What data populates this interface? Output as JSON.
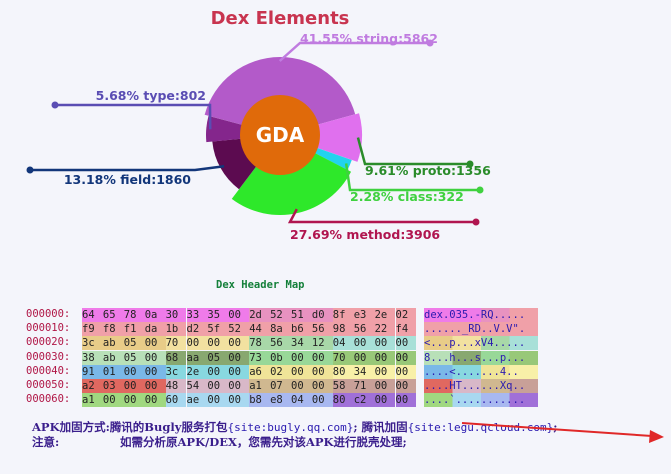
{
  "chart_data": {
    "type": "pie",
    "title": "Dex Elements",
    "center_label": "GDA",
    "slices": [
      {
        "label": "41.55% string:5862",
        "name": "string",
        "percent": 41.55,
        "value": 5862,
        "color": "#b35ac9"
      },
      {
        "label": "9.61% proto:1356",
        "name": "proto",
        "percent": 9.61,
        "value": 1356,
        "color": "#e070ee"
      },
      {
        "label": "2.28% class:322",
        "name": "class",
        "percent": 2.28,
        "value": 322,
        "color": "#22d3ee"
      },
      {
        "label": "27.69% method:3906",
        "name": "method",
        "percent": 27.69,
        "value": 3906,
        "color": "#2ee82a"
      },
      {
        "label": "13.18% field:1860",
        "name": "field",
        "percent": 13.18,
        "value": 1860,
        "color": "#5c0b50"
      },
      {
        "label": "5.68% type:802",
        "name": "type",
        "percent": 5.68,
        "value": 802,
        "color": "#84268c"
      }
    ],
    "label_colors": {
      "string": "#c07ce0",
      "proto": "#2a8c2a",
      "class": "#3fd13f",
      "method": "#b0154f",
      "field": "#12367a",
      "type": "#5a4db3"
    },
    "legend": "none"
  },
  "header_map": {
    "title": "Dex Header Map",
    "rows": [
      {
        "offset": "000000:",
        "bytes": [
          "64",
          "65",
          "78",
          "0a",
          "30",
          "33",
          "35",
          "00",
          "2d",
          "52",
          "51",
          "d0",
          "8f",
          "e3",
          "2e",
          "02"
        ],
        "ascii": "dex.035.-RQ....."
      },
      {
        "offset": "000010:",
        "bytes": [
          "f9",
          "f8",
          "f1",
          "da",
          "1b",
          "d2",
          "5f",
          "52",
          "44",
          "8a",
          "b6",
          "56",
          "98",
          "56",
          "22",
          "f4"
        ],
        "ascii": "......_RD..V.V\"."
      },
      {
        "offset": "000020:",
        "bytes": [
          "3c",
          "ab",
          "05",
          "00",
          "70",
          "00",
          "00",
          "00",
          "78",
          "56",
          "34",
          "12",
          "04",
          "00",
          "00",
          "00"
        ],
        "ascii": "<...p...xV4....."
      },
      {
        "offset": "000030:",
        "bytes": [
          "38",
          "ab",
          "05",
          "00",
          "68",
          "aa",
          "05",
          "00",
          "73",
          "0b",
          "00",
          "00",
          "70",
          "00",
          "00",
          "00"
        ],
        "ascii": "8...h...s...p..."
      },
      {
        "offset": "000040:",
        "bytes": [
          "91",
          "01",
          "00",
          "00",
          "3c",
          "2e",
          "00",
          "00",
          "a6",
          "02",
          "00",
          "00",
          "80",
          "34",
          "00",
          "00"
        ],
        "ascii": "....<.......4.."
      },
      {
        "offset": "000050:",
        "bytes": [
          "a2",
          "03",
          "00",
          "00",
          "48",
          "54",
          "00",
          "00",
          "a1",
          "07",
          "00",
          "00",
          "58",
          "71",
          "00",
          "00"
        ],
        "ascii": "....HT......Xq.."
      },
      {
        "offset": "000060:",
        "bytes": [
          "a1",
          "00",
          "00",
          "00",
          "60",
          "ae",
          "00",
          "00",
          "b8",
          "e8",
          "04",
          "00",
          "80",
          "c2",
          "00",
          "00"
        ],
        "ascii": "....`..........."
      }
    ],
    "cell_colors": [
      [
        "#ef7be9",
        "#ef7be9",
        "#ef7be9",
        "#ef7be9",
        "#ef7be9",
        "#ef7be9",
        "#ef7be9",
        "#ef7be9",
        "#e892c0",
        "#e892c0",
        "#e892c0",
        "#e892c0",
        "#f0a0a8",
        "#f0a0a8",
        "#f0a0a8",
        "#f0a0a8"
      ],
      [
        "#f0a0a8",
        "#f0a0a8",
        "#f0a0a8",
        "#f0a0a8",
        "#f0a0a8",
        "#f0a0a8",
        "#f0a0a8",
        "#f0a0a8",
        "#f0a0a8",
        "#f0a0a8",
        "#f0a0a8",
        "#f0a0a8",
        "#f0a0a8",
        "#f0a0a8",
        "#f0a0a8",
        "#f0a0a8"
      ],
      [
        "#e8cc88",
        "#e8cc88",
        "#e8cc88",
        "#e8cc88",
        "#f2e1a0",
        "#f2e1a0",
        "#f2e1a0",
        "#f2e1a0",
        "#a8d8a8",
        "#a8d8a8",
        "#a8d8a8",
        "#a8d8a8",
        "#a8e0d8",
        "#a8e0d8",
        "#a8e0d8",
        "#a8e0d8"
      ],
      [
        "#b8e0b8",
        "#b8e0b8",
        "#b8e0b8",
        "#b8e0b8",
        "#88a870",
        "#88a870",
        "#88a870",
        "#88a870",
        "#98d898",
        "#98d898",
        "#98d898",
        "#98d898",
        "#98c878",
        "#98c878",
        "#98c878",
        "#98c878"
      ],
      [
        "#7ab8e8",
        "#7ab8e8",
        "#7ab8e8",
        "#7ab8e8",
        "#88d8e0",
        "#88d8e0",
        "#88d8e0",
        "#88d8e0",
        "#f0e498",
        "#f0e498",
        "#f0e498",
        "#f0e498",
        "#f8f0a8",
        "#f8f0a8",
        "#f8f0a8",
        "#f8f0a8"
      ],
      [
        "#e06860",
        "#e06860",
        "#e06860",
        "#e06860",
        "#d8b8c8",
        "#d8b8c8",
        "#d8b8c8",
        "#d8b8c8",
        "#d0b890",
        "#d0b890",
        "#d0b890",
        "#d0b890",
        "#c8a098",
        "#c8a098",
        "#c8a098",
        "#c8a098"
      ],
      [
        "#a0d880",
        "#a0d880",
        "#a0d880",
        "#a0d880",
        "#a8d8f0",
        "#a8d8f0",
        "#a8d8f0",
        "#a8d8f0",
        "#a8b8f0",
        "#a8b8f0",
        "#a8b8f0",
        "#a8b8f0",
        "#a070d8",
        "#a070d8",
        "#a070d8",
        "#a070d8"
      ]
    ]
  },
  "info": {
    "line1_label": "APK加固方式:",
    "line1_text": "腾讯的Bugly服务打包",
    "line1_mono": "{site:bugly.qq.com}",
    "line1_text2": "; 腾讯加固",
    "line1_mono2": "{site:legu.qcloud.com}",
    "line1_end": ";",
    "line2_label": "注意:",
    "line2_text": "如需分析原APK/DEX，您需先对该APK进行脱壳处理;"
  }
}
